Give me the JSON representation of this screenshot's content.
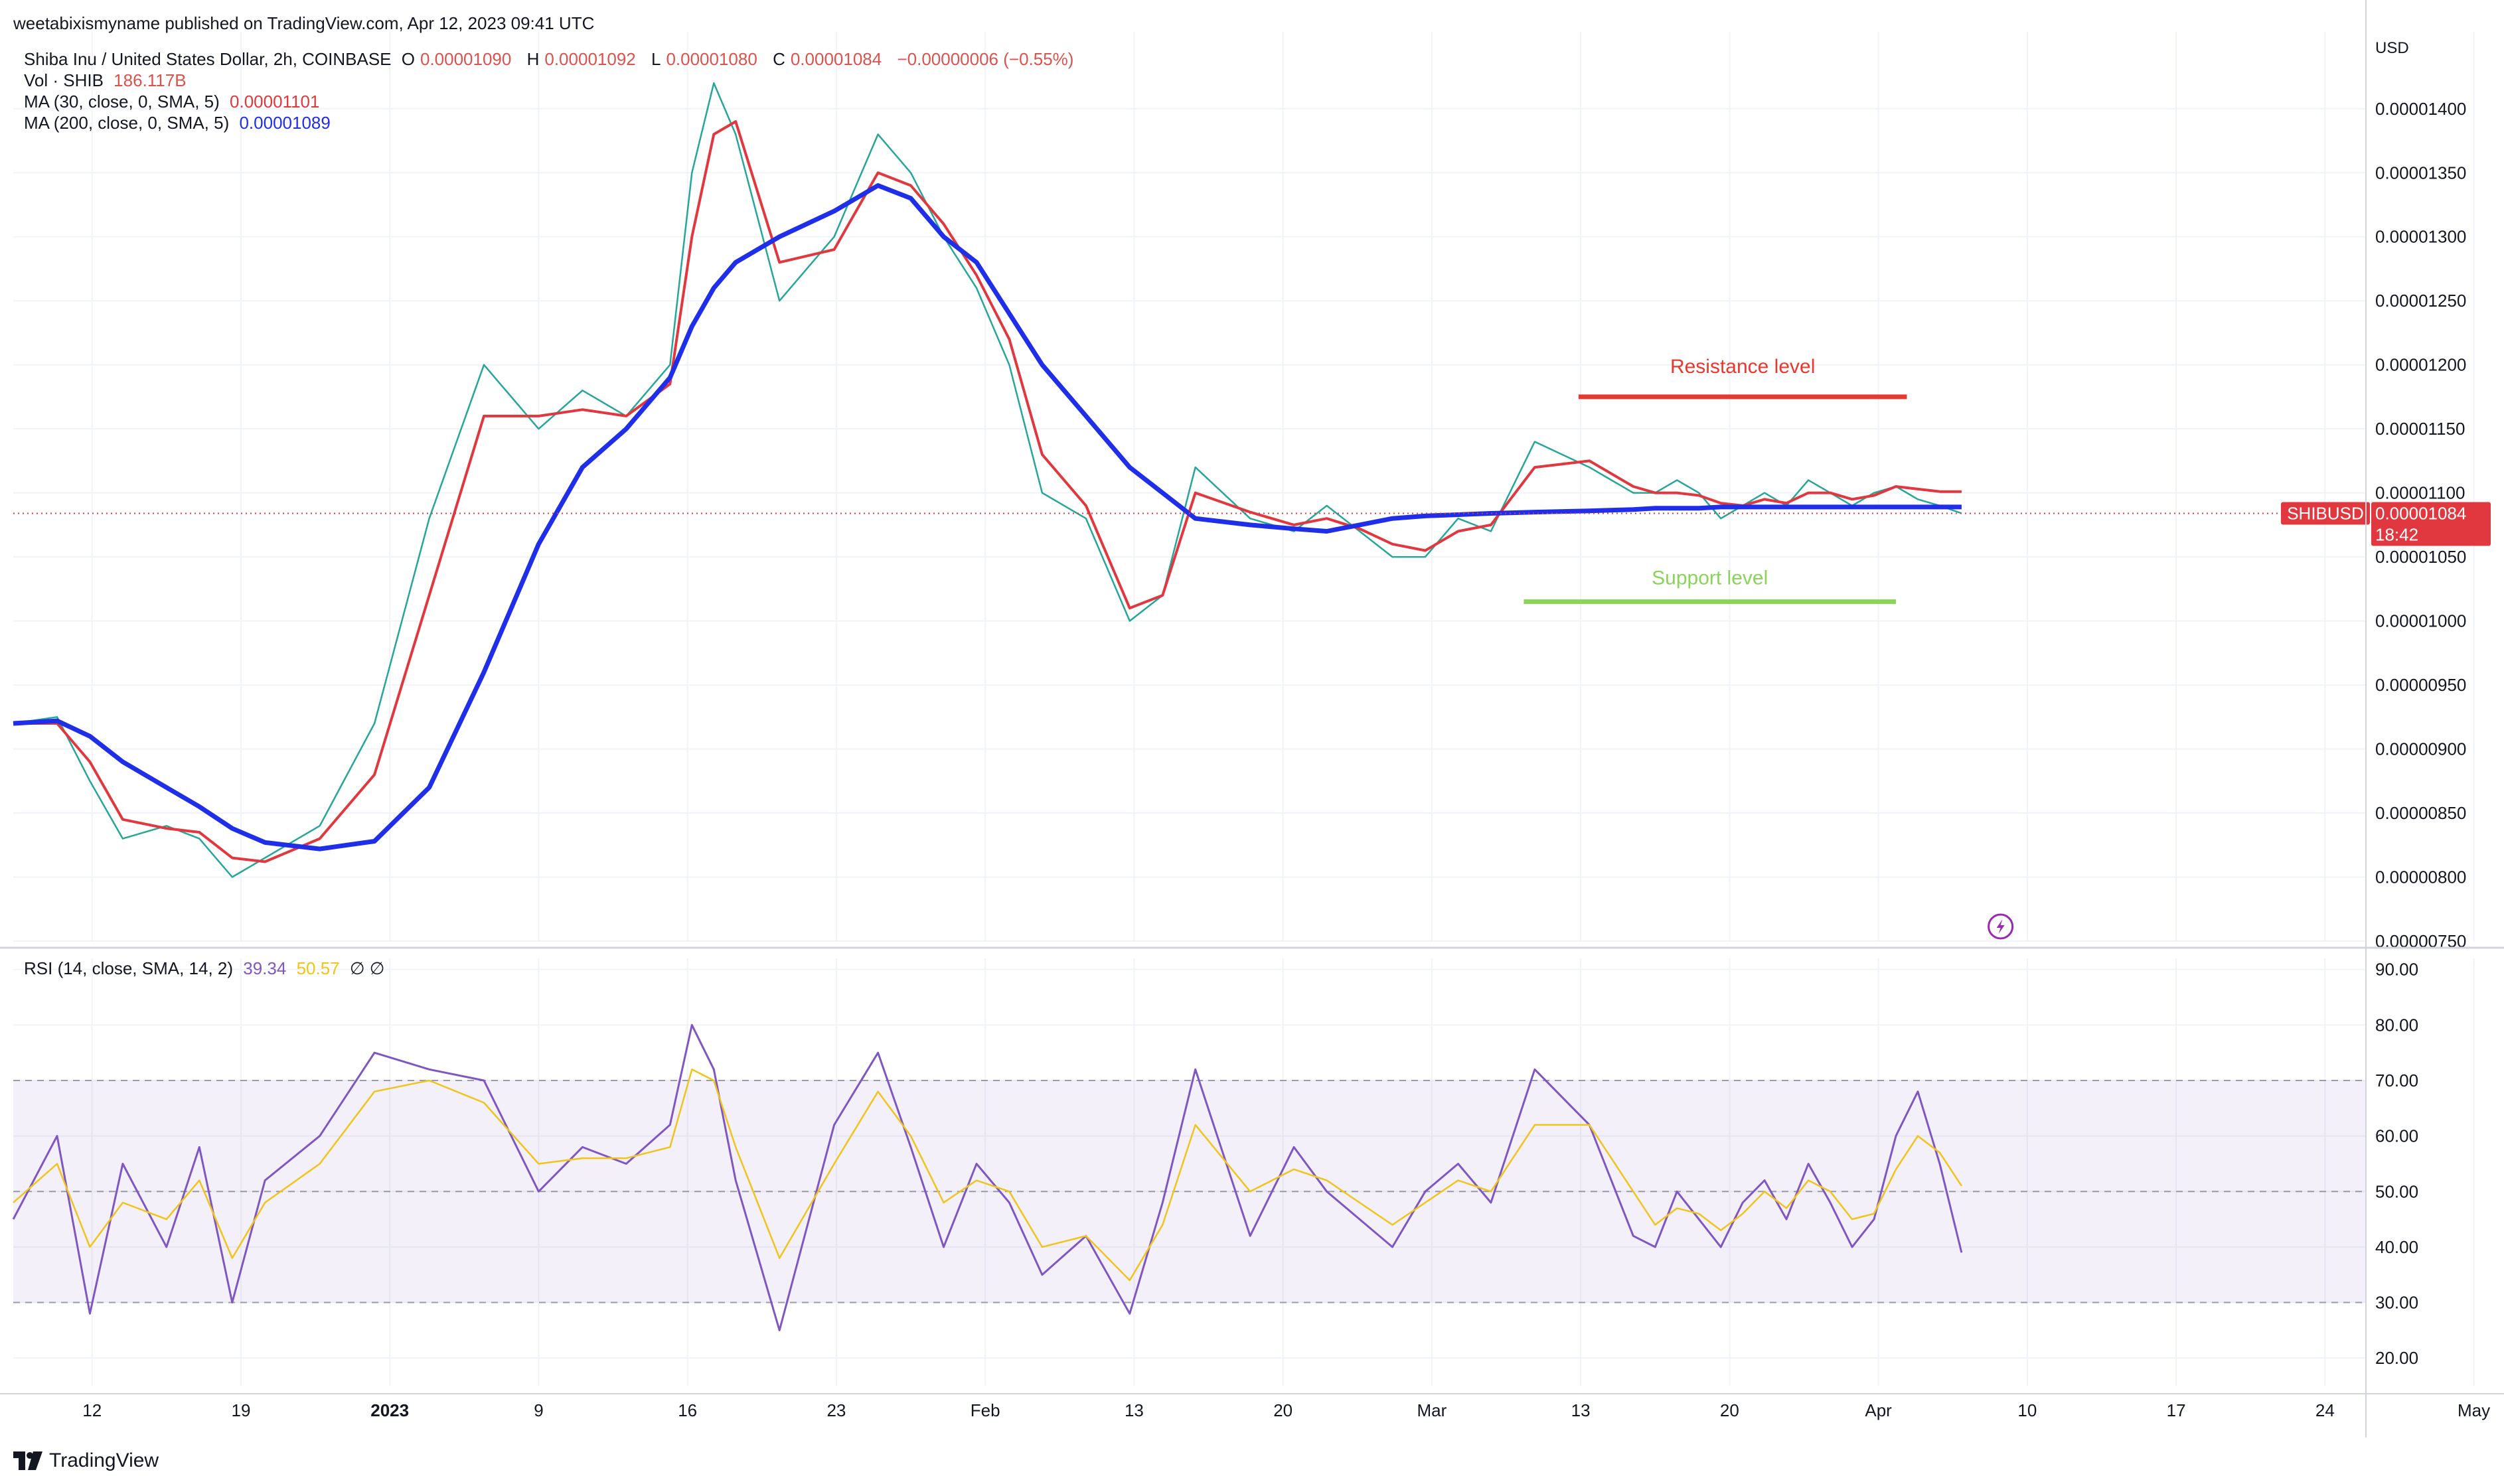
{
  "publisher": "weetabixismyname published on TradingView.com, Apr 12, 2023 09:41 UTC",
  "symbol": {
    "title": "Shiba Inu / United States Dollar, 2h, COINBASE",
    "o_label": "O",
    "o_value": "0.00001090",
    "h_label": "H",
    "h_value": "0.00001092",
    "l_label": "L",
    "l_value": "0.00001080",
    "c_label": "C",
    "c_value": "0.00001084",
    "change": "−0.00000006 (−0.55%)"
  },
  "volume": {
    "label": "Vol · SHIB",
    "value": "186.117B"
  },
  "ma30": {
    "label": "MA (30, close, 0, SMA, 5)",
    "value": "0.00001101",
    "color": "#e0383e"
  },
  "ma200": {
    "label": "MA (200, close, 0, SMA, 5)",
    "value": "0.00001089",
    "color": "#1f2ee8"
  },
  "rsi": {
    "label": "RSI (14, close, SMA, 14, 2)",
    "value": "39.34",
    "sma_value": "50.57",
    "icons": "∅  ∅"
  },
  "price_badge": {
    "symbol": "SHIBUSD",
    "price": "0.00001084",
    "countdown": "18:42"
  },
  "brand": "TradingView",
  "chart_data": [
    {
      "type": "line",
      "currency": "USD",
      "ylim": [
        7.5e-06,
        1.46e-05
      ],
      "y_ticks": [
        "0.00000750",
        "0.00000800",
        "0.00000850",
        "0.00000900",
        "0.00000950",
        "0.00001000",
        "0.00001050",
        "0.00001100",
        "0.00001150",
        "0.00001200",
        "0.00001250",
        "0.00001300",
        "0.00001350",
        "0.00001400"
      ],
      "x_ticks": [
        "12",
        "19",
        "2023",
        "9",
        "16",
        "23",
        "Feb",
        "13",
        "20",
        "Mar",
        "13",
        "20",
        "Apr",
        "10",
        "17",
        "24",
        "May"
      ],
      "x": [
        0,
        4,
        7,
        10,
        14,
        17,
        20,
        23,
        28,
        33,
        38,
        43,
        48,
        52,
        56,
        60,
        62,
        64,
        66,
        70,
        75,
        79,
        82,
        85,
        88,
        91,
        94,
        98,
        102,
        105,
        108,
        113,
        117,
        120,
        123,
        126,
        129,
        132,
        135,
        139,
        144,
        148,
        150,
        152,
        154,
        156,
        158,
        160,
        162,
        164,
        166,
        168,
        170,
        172,
        174,
        176,
        178
      ],
      "series": [
        {
          "name": "SHIB price",
          "color": "#26a69a",
          "values": [
            9.2e-06,
            9.25e-06,
            8.75e-06,
            8.3e-06,
            8.4e-06,
            8.3e-06,
            8e-06,
            8.15e-06,
            8.4e-06,
            9.2e-06,
            1.08e-05,
            1.2e-05,
            1.15e-05,
            1.18e-05,
            1.16e-05,
            1.2e-05,
            1.35e-05,
            1.42e-05,
            1.38e-05,
            1.25e-05,
            1.3e-05,
            1.38e-05,
            1.35e-05,
            1.3e-05,
            1.26e-05,
            1.2e-05,
            1.1e-05,
            1.08e-05,
            1e-05,
            1.02e-05,
            1.12e-05,
            1.08e-05,
            1.07e-05,
            1.09e-05,
            1.07e-05,
            1.05e-05,
            1.05e-05,
            1.08e-05,
            1.07e-05,
            1.14e-05,
            1.12e-05,
            1.1e-05,
            1.1e-05,
            1.11e-05,
            1.1e-05,
            1.08e-05,
            1.09e-05,
            1.1e-05,
            1.09e-05,
            1.11e-05,
            1.1e-05,
            1.09e-05,
            1.1e-05,
            1.105e-05,
            1.095e-05,
            1.09e-05,
            1.084e-05
          ]
        },
        {
          "name": "MA 30",
          "color": "#e0383e",
          "values": [
            9.2e-06,
            9.2e-06,
            8.9e-06,
            8.45e-06,
            8.38e-06,
            8.35e-06,
            8.15e-06,
            8.12e-06,
            8.3e-06,
            8.8e-06,
            1.02e-05,
            1.16e-05,
            1.16e-05,
            1.165e-05,
            1.16e-05,
            1.185e-05,
            1.3e-05,
            1.38e-05,
            1.39e-05,
            1.28e-05,
            1.29e-05,
            1.35e-05,
            1.34e-05,
            1.31e-05,
            1.27e-05,
            1.22e-05,
            1.13e-05,
            1.09e-05,
            1.01e-05,
            1.02e-05,
            1.1e-05,
            1.085e-05,
            1.075e-05,
            1.08e-05,
            1.072e-05,
            1.06e-05,
            1.055e-05,
            1.07e-05,
            1.075e-05,
            1.12e-05,
            1.125e-05,
            1.105e-05,
            1.1e-05,
            1.1e-05,
            1.098e-05,
            1.092e-05,
            1.09e-05,
            1.095e-05,
            1.092e-05,
            1.1e-05,
            1.1e-05,
            1.095e-05,
            1.098e-05,
            1.105e-05,
            1.103e-05,
            1.101e-05,
            1.101e-05
          ]
        },
        {
          "name": "MA 200",
          "color": "#1f2ee8",
          "values": [
            9.2e-06,
            9.22e-06,
            9.1e-06,
            8.9e-06,
            8.7e-06,
            8.55e-06,
            8.38e-06,
            8.27e-06,
            8.22e-06,
            8.28e-06,
            8.7e-06,
            9.6e-06,
            1.06e-05,
            1.12e-05,
            1.15e-05,
            1.19e-05,
            1.23e-05,
            1.26e-05,
            1.28e-05,
            1.3e-05,
            1.32e-05,
            1.34e-05,
            1.33e-05,
            1.3e-05,
            1.28e-05,
            1.24e-05,
            1.2e-05,
            1.16e-05,
            1.12e-05,
            1.1e-05,
            1.08e-05,
            1.075e-05,
            1.072e-05,
            1.07e-05,
            1.075e-05,
            1.08e-05,
            1.082e-05,
            1.083e-05,
            1.084e-05,
            1.085e-05,
            1.086e-05,
            1.087e-05,
            1.088e-05,
            1.088e-05,
            1.088e-05,
            1.089e-05,
            1.089e-05,
            1.089e-05,
            1.089e-05,
            1.089e-05,
            1.089e-05,
            1.089e-05,
            1.089e-05,
            1.089e-05,
            1.089e-05,
            1.089e-05,
            1.089e-05
          ]
        }
      ],
      "annotations": [
        {
          "text": "Resistance level",
          "y": 1.175e-05,
          "x_range": [
            143,
            173
          ],
          "color": "#e8392f"
        },
        {
          "text": "Support level",
          "y": 1.015e-05,
          "x_range": [
            138,
            172
          ],
          "color": "#8bd35b"
        }
      ],
      "last_price_line": 1.084e-05
    },
    {
      "type": "line",
      "ylim": [
        15,
        92
      ],
      "y_ticks": [
        "20.00",
        "30.00",
        "40.00",
        "50.00",
        "60.00",
        "70.00",
        "80.00",
        "90.00"
      ],
      "bands": {
        "upper": 70,
        "middle": 50,
        "lower": 30
      },
      "x": [
        0,
        4,
        7,
        10,
        14,
        17,
        20,
        23,
        28,
        33,
        38,
        43,
        48,
        52,
        56,
        60,
        62,
        64,
        66,
        70,
        75,
        79,
        82,
        85,
        88,
        91,
        94,
        98,
        102,
        105,
        108,
        113,
        117,
        120,
        123,
        126,
        129,
        132,
        135,
        139,
        144,
        148,
        150,
        152,
        154,
        156,
        158,
        160,
        162,
        164,
        166,
        168,
        170,
        172,
        174,
        176,
        178
      ],
      "series": [
        {
          "name": "RSI",
          "color": "#7e57c2",
          "values": [
            45,
            60,
            28,
            55,
            40,
            58,
            30,
            52,
            60,
            75,
            72,
            70,
            50,
            58,
            55,
            62,
            80,
            72,
            52,
            25,
            62,
            75,
            58,
            40,
            55,
            48,
            35,
            42,
            28,
            48,
            72,
            42,
            58,
            50,
            45,
            40,
            50,
            55,
            48,
            72,
            62,
            42,
            40,
            50,
            45,
            40,
            48,
            52,
            45,
            55,
            48,
            40,
            45,
            60,
            68,
            55,
            39
          ]
        },
        {
          "name": "RSI SMA",
          "color": "#f0c419",
          "values": [
            48,
            55,
            40,
            48,
            45,
            52,
            38,
            48,
            55,
            68,
            70,
            66,
            55,
            56,
            56,
            58,
            72,
            70,
            58,
            38,
            55,
            68,
            60,
            48,
            52,
            50,
            40,
            42,
            34,
            44,
            62,
            50,
            54,
            52,
            48,
            44,
            48,
            52,
            50,
            62,
            62,
            50,
            44,
            47,
            46,
            43,
            46,
            50,
            47,
            52,
            50,
            45,
            46,
            54,
            60,
            57,
            51
          ]
        }
      ]
    }
  ]
}
